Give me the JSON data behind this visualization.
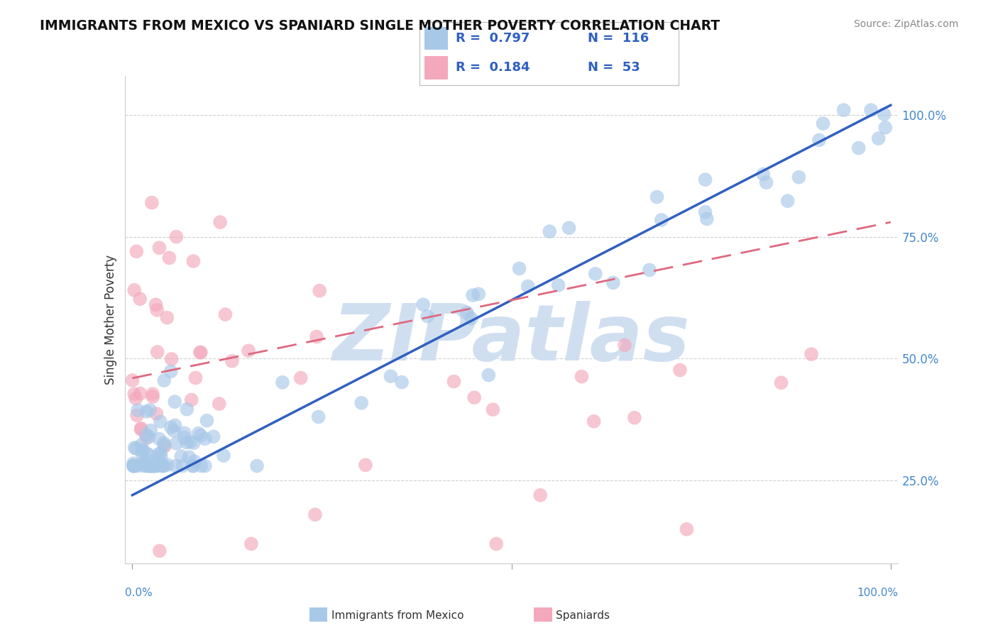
{
  "title": "IMMIGRANTS FROM MEXICO VS SPANIARD SINGLE MOTHER POVERTY CORRELATION CHART",
  "source": "Source: ZipAtlas.com",
  "ylabel": "Single Mother Poverty",
  "legend_blue_R": "0.797",
  "legend_blue_N": "116",
  "legend_pink_R": "0.184",
  "legend_pink_N": "53",
  "blue_color": "#a8c8e8",
  "pink_color": "#f4a8bc",
  "blue_line_color": "#3060c0",
  "pink_line_color": "#e06880",
  "watermark_color": "#d0dff0",
  "background_color": "#ffffff",
  "grid_color": "#cccccc",
  "axis_label_color": "#4488cc",
  "title_color": "#111111"
}
